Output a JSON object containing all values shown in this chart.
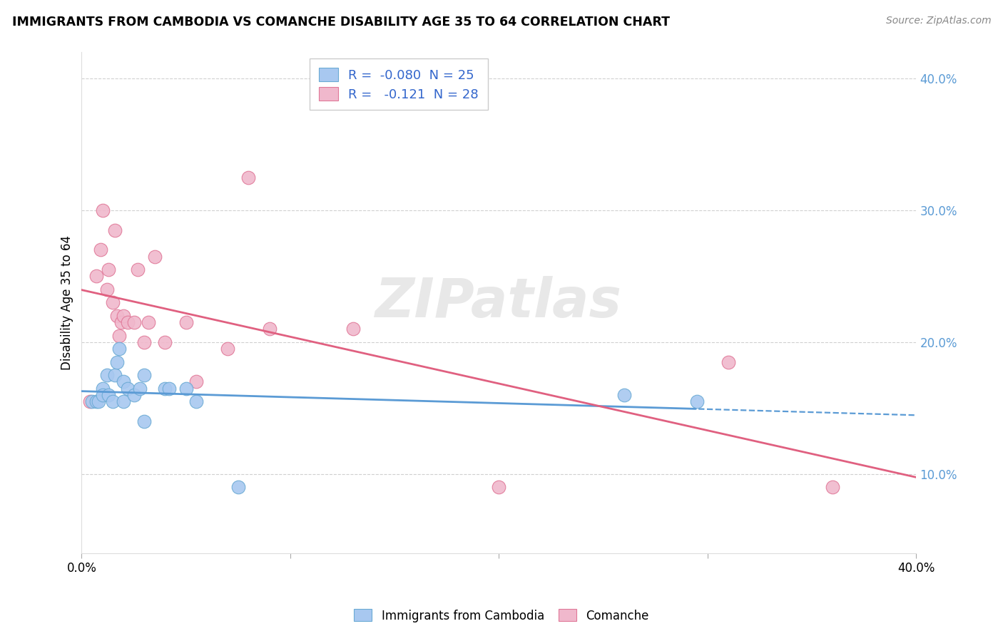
{
  "title": "IMMIGRANTS FROM CAMBODIA VS COMANCHE DISABILITY AGE 35 TO 64 CORRELATION CHART",
  "source": "Source: ZipAtlas.com",
  "ylabel": "Disability Age 35 to 64",
  "legend_blue_r": "-0.080",
  "legend_blue_n": "25",
  "legend_pink_r": "-0.121",
  "legend_pink_n": "28",
  "legend_blue_label": "Immigrants from Cambodia",
  "legend_pink_label": "Comanche",
  "xlim": [
    0.0,
    0.4
  ],
  "ylim": [
    0.04,
    0.42
  ],
  "yticks": [
    0.1,
    0.2,
    0.3,
    0.4
  ],
  "ytick_labels": [
    "10.0%",
    "20.0%",
    "30.0%",
    "40.0%"
  ],
  "xticks": [
    0.0,
    0.1,
    0.2,
    0.3,
    0.4
  ],
  "xtick_labels": [
    "0.0%",
    "",
    "",
    "",
    "40.0%"
  ],
  "blue_scatter_color": "#a8c8f0",
  "pink_scatter_color": "#f0b8cc",
  "blue_edge_color": "#6aaad4",
  "pink_edge_color": "#e07898",
  "blue_line_color": "#5b9bd5",
  "pink_line_color": "#e06080",
  "watermark": "ZIPatlas",
  "blue_x": [
    0.005,
    0.007,
    0.008,
    0.01,
    0.01,
    0.012,
    0.013,
    0.015,
    0.016,
    0.017,
    0.018,
    0.02,
    0.02,
    0.022,
    0.025,
    0.028,
    0.03,
    0.03,
    0.04,
    0.042,
    0.05,
    0.055,
    0.075,
    0.26,
    0.295
  ],
  "blue_y": [
    0.155,
    0.155,
    0.155,
    0.165,
    0.16,
    0.175,
    0.16,
    0.155,
    0.175,
    0.185,
    0.195,
    0.17,
    0.155,
    0.165,
    0.16,
    0.165,
    0.175,
    0.14,
    0.165,
    0.165,
    0.165,
    0.155,
    0.09,
    0.16,
    0.155
  ],
  "pink_x": [
    0.004,
    0.007,
    0.009,
    0.01,
    0.012,
    0.013,
    0.015,
    0.016,
    0.017,
    0.018,
    0.019,
    0.02,
    0.022,
    0.025,
    0.027,
    0.03,
    0.032,
    0.035,
    0.04,
    0.05,
    0.055,
    0.07,
    0.08,
    0.09,
    0.13,
    0.2,
    0.31,
    0.36
  ],
  "pink_y": [
    0.155,
    0.25,
    0.27,
    0.3,
    0.24,
    0.255,
    0.23,
    0.285,
    0.22,
    0.205,
    0.215,
    0.22,
    0.215,
    0.215,
    0.255,
    0.2,
    0.215,
    0.265,
    0.2,
    0.215,
    0.17,
    0.195,
    0.325,
    0.21,
    0.21,
    0.09,
    0.185,
    0.09
  ]
}
